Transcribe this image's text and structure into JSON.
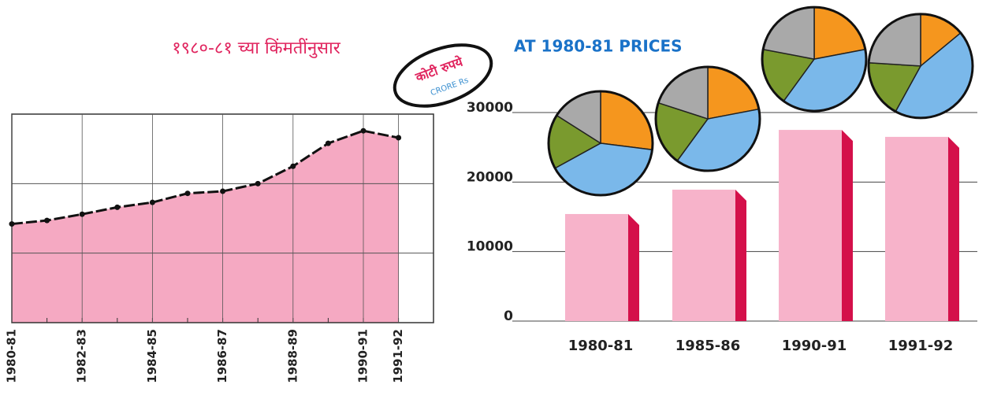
{
  "chart_data": [
    {
      "type": "area",
      "title": "१९८०-८१ च्या किंमतींनुसार",
      "categories": [
        "1980-81",
        null,
        "1982-83",
        null,
        "1984-85",
        null,
        "1986-87",
        null,
        "1988-89",
        null,
        "1990-91",
        "1991-92"
      ],
      "values": [
        14200,
        14700,
        15600,
        16600,
        17300,
        18600,
        18900,
        20000,
        22500,
        25800,
        27600,
        26600
      ],
      "ylim": [
        0,
        30000
      ],
      "grid_lines": [
        10000,
        20000
      ],
      "color": "#f5a9c2",
      "line_color": "#111111"
    },
    {
      "type": "bar",
      "title": "AT 1980-81 PRICES",
      "annotations": [
        "कोटी रुपये",
        "CRORE Rs"
      ],
      "categories": [
        "1980-81",
        "1985-86",
        "1990-91",
        "1991-92"
      ],
      "values": [
        15400,
        18900,
        27500,
        26500
      ],
      "ylim": [
        0,
        30000
      ],
      "yticks": [
        0,
        10000,
        20000,
        30000
      ],
      "color": "#f7b3ca",
      "side_color": "#d4104a",
      "pie_colors": [
        "#f5961e",
        "#7ab8ea",
        "#7a9a2e",
        "#a9a9a9"
      ],
      "pies": [
        [
          27,
          40,
          17,
          16
        ],
        [
          22,
          38,
          20,
          20
        ],
        [
          22,
          38,
          18,
          22
        ],
        [
          14,
          44,
          18,
          24
        ]
      ]
    }
  ]
}
